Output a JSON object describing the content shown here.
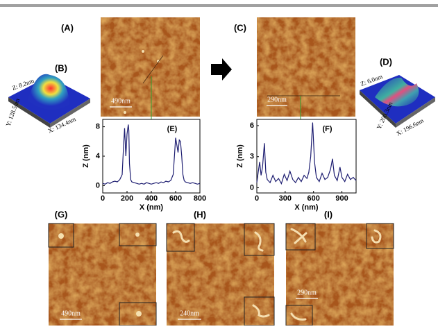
{
  "panel_labels": [
    "(A)",
    "(B)",
    "(C)",
    "(D)",
    "(G)",
    "(H)",
    "(I)"
  ],
  "scale_bars": [
    "490nm",
    "290nm",
    "490nm",
    "240nm",
    "290nm"
  ],
  "surface_b": {
    "z": "Z: 8.2nm",
    "y": "Y: 128.5nm",
    "x": "X: 134.4nm"
  },
  "surface_d": {
    "z": "Z: 6.0nm",
    "y": "Y: 200.3nm",
    "x": "X: 196.6nm"
  },
  "chart_data": [
    {
      "type": "line",
      "label": "(E)",
      "xlabel": "X (nm)",
      "ylabel": "Z (nm)",
      "color": "#1c1c70",
      "x": [
        0,
        20,
        40,
        60,
        80,
        100,
        120,
        140,
        160,
        170,
        180,
        190,
        200,
        210,
        215,
        220,
        230,
        240,
        260,
        280,
        300,
        320,
        340,
        360,
        380,
        400,
        420,
        440,
        460,
        480,
        500,
        520,
        540,
        560,
        580,
        590,
        600,
        610,
        620,
        630,
        640,
        650,
        660,
        670,
        680,
        700,
        720,
        740,
        760,
        780,
        800
      ],
      "values": [
        0.3,
        0.2,
        0.4,
        0.3,
        0.5,
        0.6,
        0.5,
        0.8,
        1.5,
        5,
        7.8,
        4,
        7,
        8.3,
        7.5,
        3,
        0.8,
        0.5,
        0.4,
        0.3,
        0.2,
        0.3,
        0.2,
        0.4,
        0.3,
        0.2,
        0.3,
        0.4,
        0.3,
        0.5,
        0.4,
        0.6,
        0.5,
        0.7,
        1.5,
        4,
        6.5,
        5.5,
        4.5,
        6.2,
        6,
        4,
        1.5,
        0.7,
        0.5,
        0.4,
        0.3,
        0.4,
        0.3,
        0.2,
        0.3
      ],
      "xlim": [
        0,
        800
      ],
      "xticks": [
        0,
        200,
        400,
        600,
        800
      ],
      "ylim": [
        -1,
        9
      ],
      "yticks": [
        0,
        4,
        8
      ]
    },
    {
      "type": "line",
      "label": "(F)",
      "xlabel": "X (nm)",
      "ylabel": "Z (nm)",
      "color": "#1c1c70",
      "x": [
        0,
        15,
        30,
        45,
        60,
        80,
        95,
        110,
        140,
        170,
        200,
        230,
        260,
        290,
        320,
        350,
        380,
        410,
        440,
        470,
        500,
        530,
        550,
        570,
        590,
        610,
        630,
        660,
        690,
        720,
        750,
        780,
        800,
        820,
        850,
        880,
        900,
        930,
        960,
        990,
        1020,
        1050
      ],
      "values": [
        0.5,
        1.5,
        2.5,
        1.2,
        2,
        4.3,
        1.5,
        0.8,
        0.5,
        1.2,
        0.6,
        0.9,
        0.4,
        1.3,
        0.7,
        1.6,
        0.8,
        0.5,
        1.0,
        0.6,
        1.2,
        0.9,
        1.5,
        3,
        6.3,
        2.5,
        1.0,
        0.6,
        1.4,
        0.8,
        1.0,
        1.8,
        2.8,
        1.2,
        0.7,
        2.0,
        1.0,
        0.6,
        1.3,
        0.8,
        1.0,
        0.7
      ],
      "xlim": [
        0,
        1050
      ],
      "xticks": [
        0,
        300,
        600,
        900
      ],
      "ylim": [
        -0.5,
        6.6
      ],
      "yticks": [
        0,
        3,
        6
      ]
    }
  ]
}
